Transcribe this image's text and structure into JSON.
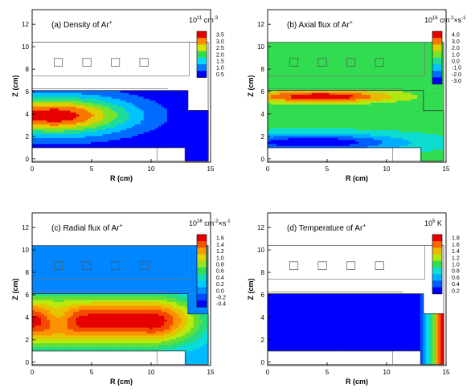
{
  "chart_data": [
    {
      "type": "heatmap",
      "panel": "a",
      "title": "(a) Density of Ar",
      "title_superscript": "+",
      "colorbar_label": "10",
      "colorbar_label_sup1": "11",
      "colorbar_label_mid": " cm",
      "colorbar_label_sup2": "-3",
      "colorbar_label_tail": "",
      "colorbar_ticks": [
        "3.5",
        "3.0",
        "2.5",
        "2.0",
        "1.5",
        "1.0",
        "0.5"
      ],
      "colorbar_values": [
        3.5,
        3.0,
        2.5,
        2.0,
        1.5,
        1.0,
        0.5
      ],
      "xlabel": "R (cm)",
      "ylabel": "Z (cm)",
      "x_ticks": [
        "0",
        "5",
        "10",
        "15"
      ],
      "y_ticks": [
        "0",
        "2",
        "4",
        "6",
        "8",
        "10",
        "12"
      ],
      "xlim": [
        0,
        15
      ],
      "ylim": [
        -0.3,
        13.3
      ],
      "field": {
        "kind": "blob",
        "background": 0.4,
        "peak": 3.6,
        "center": [
          1.8,
          3.9
        ],
        "radii": [
          7.5,
          2.0
        ],
        "plateau": 0.3,
        "extra": []
      }
    },
    {
      "type": "heatmap",
      "panel": "b",
      "title": "(b) Axial flux of Ar",
      "title_superscript": "+",
      "colorbar_label": "10",
      "colorbar_label_sup1": "16",
      "colorbar_label_mid": " cm",
      "colorbar_label_sup2": "-2",
      "colorbar_label_tail": "×s",
      "colorbar_label_sup3": "-1",
      "colorbar_ticks": [
        "4.0",
        "3.0",
        "2.0",
        "1.0",
        "0.0",
        "-1.0",
        "-2.0",
        "-3.0"
      ],
      "colorbar_values": [
        4.0,
        3.0,
        2.0,
        1.0,
        0.0,
        -1.0,
        -2.0,
        -3.0
      ],
      "xlabel": "R (cm)",
      "ylabel": "Z (cm)",
      "x_ticks": [
        "0",
        "5",
        "10",
        "15"
      ],
      "y_ticks": [
        "0",
        "2",
        "4",
        "6",
        "8",
        "10",
        "12"
      ],
      "xlim": [
        0,
        15
      ],
      "ylim": [
        -0.3,
        13.3
      ],
      "field": {
        "kind": "dipole",
        "background": 0.3,
        "positive": {
          "peak": 4.3,
          "center": [
            4.5,
            5.6
          ],
          "radii": [
            6.0,
            0.55
          ]
        },
        "negative": {
          "peak": -3.4,
          "center": [
            3.8,
            1.5
          ],
          "radii": [
            7.5,
            0.75
          ]
        }
      }
    },
    {
      "type": "heatmap",
      "panel": "c",
      "title": "(c) Radial flux of Ar",
      "title_superscript": "+",
      "colorbar_label": "10",
      "colorbar_label_sup1": "16",
      "colorbar_label_mid": " cm",
      "colorbar_label_sup2": "-2",
      "colorbar_label_tail": "×s",
      "colorbar_label_sup3": "-1",
      "colorbar_ticks": [
        "1.6",
        "1.4",
        "1.2",
        "1.0",
        "0.8",
        "0.6",
        "0.4",
        "0.2",
        "0.0",
        "-0.2",
        "-0.4"
      ],
      "colorbar_values": [
        1.6,
        1.4,
        1.2,
        1.0,
        0.8,
        0.6,
        0.4,
        0.2,
        0.0,
        -0.2,
        -0.4
      ],
      "xlabel": "R (cm)",
      "ylabel": "Z (cm)",
      "x_ticks": [
        "0",
        "5",
        "10",
        "15"
      ],
      "y_ticks": [
        "0",
        "2",
        "4",
        "6",
        "8",
        "10",
        "12"
      ],
      "xlim": [
        0,
        15
      ],
      "ylim": [
        -0.3,
        13.3
      ],
      "field": {
        "kind": "blob",
        "background": 0.05,
        "peak": 1.65,
        "center": [
          10.0,
          3.7
        ],
        "radii": [
          4.8,
          2.6
        ],
        "plateau": 0.2,
        "extra": [
          {
            "peak": -0.45,
            "center": [
              2.2,
              4.0
            ],
            "radii": [
              1.6,
              1.5
            ]
          }
        ]
      }
    },
    {
      "type": "heatmap",
      "panel": "d",
      "title": "(d) Temperature of Ar",
      "title_superscript": "+",
      "colorbar_label": "10",
      "colorbar_label_sup1": "5",
      "colorbar_label_mid": " K",
      "colorbar_label_sup2": "",
      "colorbar_label_tail": "",
      "colorbar_ticks": [
        "1.8",
        "1.6",
        "1.4",
        "1.2",
        "1.0",
        "0.8",
        "0.6",
        "0.4",
        "0.2"
      ],
      "colorbar_values": [
        1.8,
        1.6,
        1.4,
        1.2,
        1.0,
        0.8,
        0.6,
        0.4,
        0.2
      ],
      "xlabel": "R (cm)",
      "ylabel": "Z (cm)",
      "x_ticks": [
        "0",
        "5",
        "10",
        "15"
      ],
      "y_ticks": [
        "0",
        "2",
        "4",
        "6",
        "8",
        "10",
        "12"
      ],
      "xlim": [
        0,
        15
      ],
      "ylim": [
        -0.3,
        13.3
      ],
      "field": {
        "kind": "edge",
        "background": 0.15,
        "peak": 1.9,
        "edge_start_r": 12.3,
        "edge_end_r": 14.6
      }
    }
  ],
  "geometry": {
    "domain_polygon": [
      [
        0,
        1.0
      ],
      [
        0,
        6.1
      ],
      [
        13.1,
        6.1
      ],
      [
        13.1,
        4.3
      ],
      [
        14.8,
        4.3
      ],
      [
        14.8,
        -0.2
      ],
      [
        12.9,
        -0.2
      ],
      [
        12.9,
        1.0
      ]
    ],
    "outer_box": [
      0,
      -0.2,
      14.8,
      10.4
    ],
    "inner_box_top": [
      0,
      7.4,
      13.2,
      10.4
    ],
    "window_squares": [
      [
        2.2,
        8.6
      ],
      [
        4.6,
        8.6
      ],
      [
        7.0,
        8.6
      ],
      [
        9.4,
        8.6
      ]
    ],
    "dielectric_lines": [
      [
        0,
        6.25,
        11.4,
        6.25
      ],
      [
        0,
        1.0,
        10.5,
        1.0
      ],
      [
        10.5,
        -0.2,
        10.5,
        1.0
      ]
    ]
  }
}
